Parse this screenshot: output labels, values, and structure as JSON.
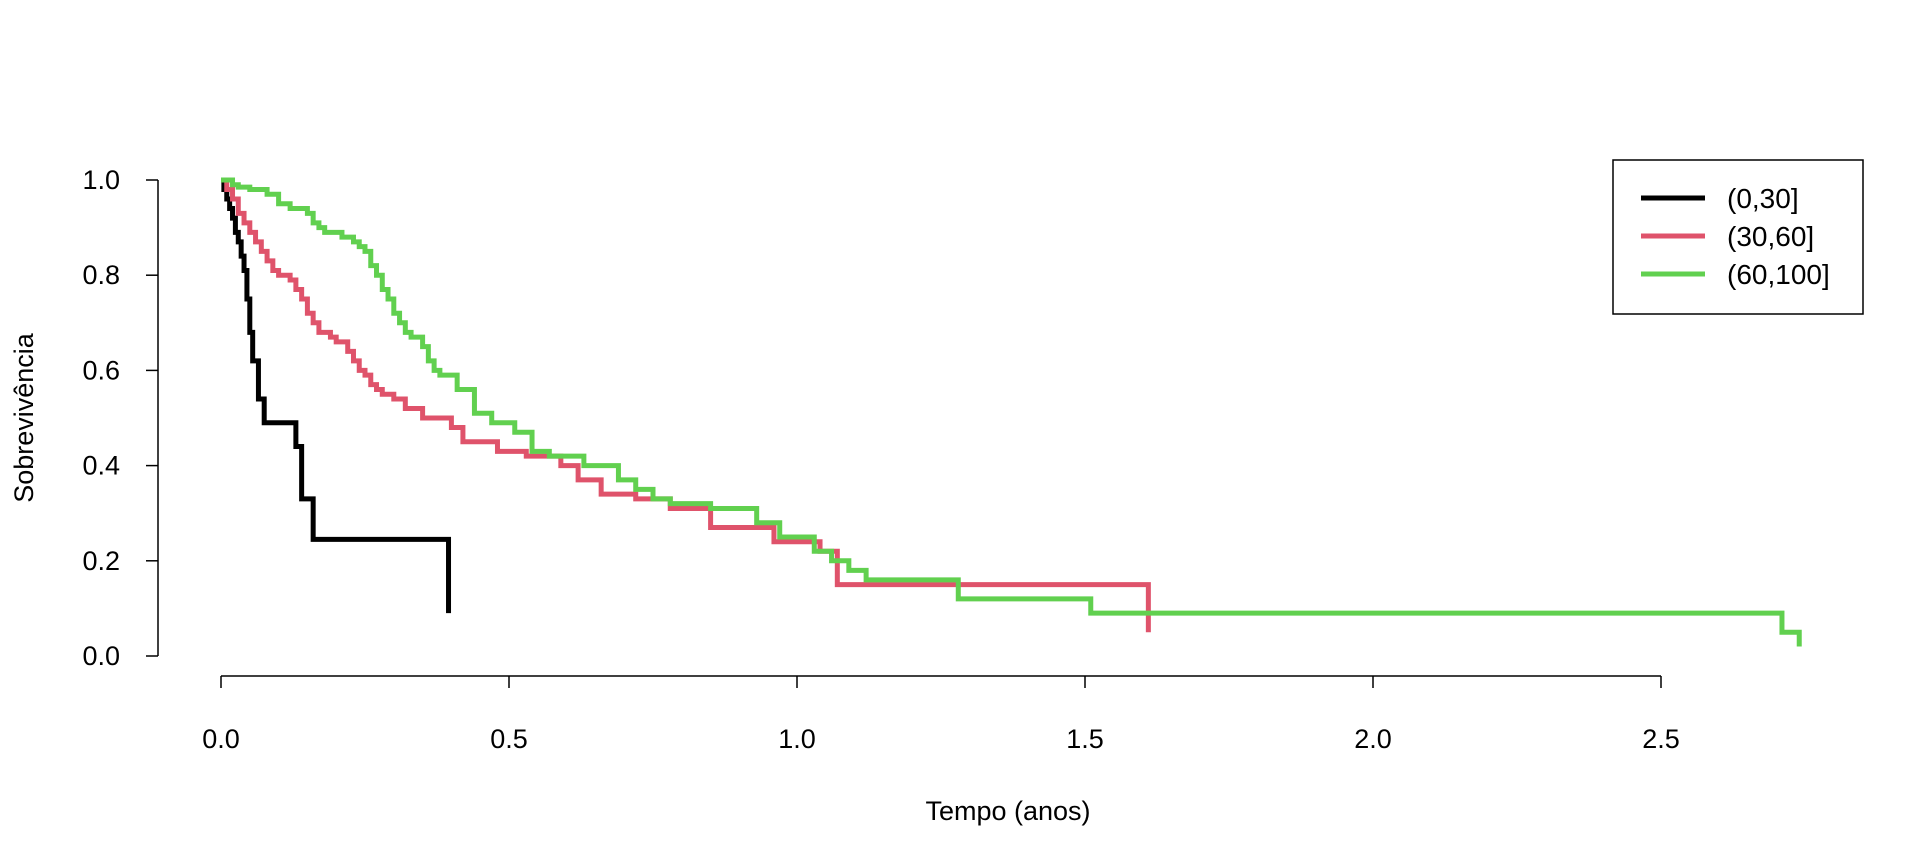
{
  "chart_data": {
    "type": "line",
    "step": true,
    "title": "",
    "xlabel": "Tempo (anos)",
    "ylabel": "Sobrevivência",
    "xlim": [
      0,
      2.74
    ],
    "ylim": [
      0,
      1.0
    ],
    "x_ticks": [
      0.0,
      0.5,
      1.0,
      1.5,
      2.0,
      2.5
    ],
    "x_tick_labels": [
      "0.0",
      "0.5",
      "1.0",
      "1.5",
      "2.0",
      "2.5"
    ],
    "y_ticks": [
      0.0,
      0.2,
      0.4,
      0.6,
      0.8,
      1.0
    ],
    "y_tick_labels": [
      "0.0",
      "0.2",
      "0.4",
      "0.6",
      "0.8",
      "1.0"
    ],
    "grid": false,
    "legend_position": "top-right",
    "series": [
      {
        "name": "(0,30]",
        "color": "#000000",
        "x": [
          0,
          0.005,
          0.01,
          0.015,
          0.02,
          0.025,
          0.03,
          0.035,
          0.04,
          0.045,
          0.05,
          0.055,
          0.065,
          0.075,
          0.13,
          0.14,
          0.14,
          0.16,
          0.395,
          0.395
        ],
        "y": [
          1.0,
          0.98,
          0.96,
          0.94,
          0.92,
          0.89,
          0.87,
          0.84,
          0.81,
          0.75,
          0.68,
          0.62,
          0.54,
          0.49,
          0.44,
          0.38,
          0.33,
          0.245,
          0.245,
          0.09
        ]
      },
      {
        "name": "(30,60]",
        "color": "#DF536B",
        "x": [
          0,
          0.01,
          0.02,
          0.03,
          0.04,
          0.05,
          0.06,
          0.07,
          0.08,
          0.09,
          0.1,
          0.12,
          0.13,
          0.14,
          0.15,
          0.16,
          0.17,
          0.18,
          0.19,
          0.2,
          0.22,
          0.23,
          0.24,
          0.25,
          0.26,
          0.27,
          0.28,
          0.3,
          0.32,
          0.35,
          0.4,
          0.42,
          0.48,
          0.53,
          0.59,
          0.62,
          0.66,
          0.72,
          0.78,
          0.85,
          0.96,
          1.04,
          1.07,
          1.61,
          1.61
        ],
        "y": [
          1.0,
          0.98,
          0.96,
          0.93,
          0.91,
          0.89,
          0.87,
          0.85,
          0.83,
          0.81,
          0.8,
          0.79,
          0.77,
          0.75,
          0.72,
          0.7,
          0.68,
          0.68,
          0.67,
          0.66,
          0.64,
          0.62,
          0.6,
          0.59,
          0.57,
          0.56,
          0.55,
          0.54,
          0.52,
          0.5,
          0.48,
          0.45,
          0.43,
          0.42,
          0.4,
          0.37,
          0.34,
          0.33,
          0.31,
          0.27,
          0.24,
          0.22,
          0.15,
          0.15,
          0.05
        ]
      },
      {
        "name": "(60,100]",
        "color": "#61D04F",
        "x": [
          0,
          0.02,
          0.03,
          0.05,
          0.08,
          0.1,
          0.12,
          0.15,
          0.16,
          0.17,
          0.18,
          0.21,
          0.23,
          0.24,
          0.25,
          0.26,
          0.27,
          0.28,
          0.29,
          0.3,
          0.31,
          0.32,
          0.33,
          0.35,
          0.36,
          0.37,
          0.38,
          0.41,
          0.44,
          0.47,
          0.51,
          0.54,
          0.57,
          0.63,
          0.69,
          0.72,
          0.75,
          0.78,
          0.85,
          0.93,
          0.97,
          1.03,
          1.06,
          1.09,
          1.12,
          1.28,
          1.51,
          2.71,
          2.74,
          2.74
        ],
        "y": [
          1.0,
          0.99,
          0.985,
          0.98,
          0.97,
          0.95,
          0.94,
          0.93,
          0.91,
          0.9,
          0.89,
          0.88,
          0.87,
          0.86,
          0.85,
          0.82,
          0.8,
          0.77,
          0.75,
          0.72,
          0.7,
          0.68,
          0.67,
          0.65,
          0.62,
          0.6,
          0.59,
          0.56,
          0.51,
          0.49,
          0.47,
          0.43,
          0.42,
          0.4,
          0.37,
          0.35,
          0.33,
          0.32,
          0.31,
          0.28,
          0.25,
          0.22,
          0.2,
          0.18,
          0.16,
          0.12,
          0.09,
          0.05,
          0.05,
          0.02
        ]
      }
    ]
  }
}
